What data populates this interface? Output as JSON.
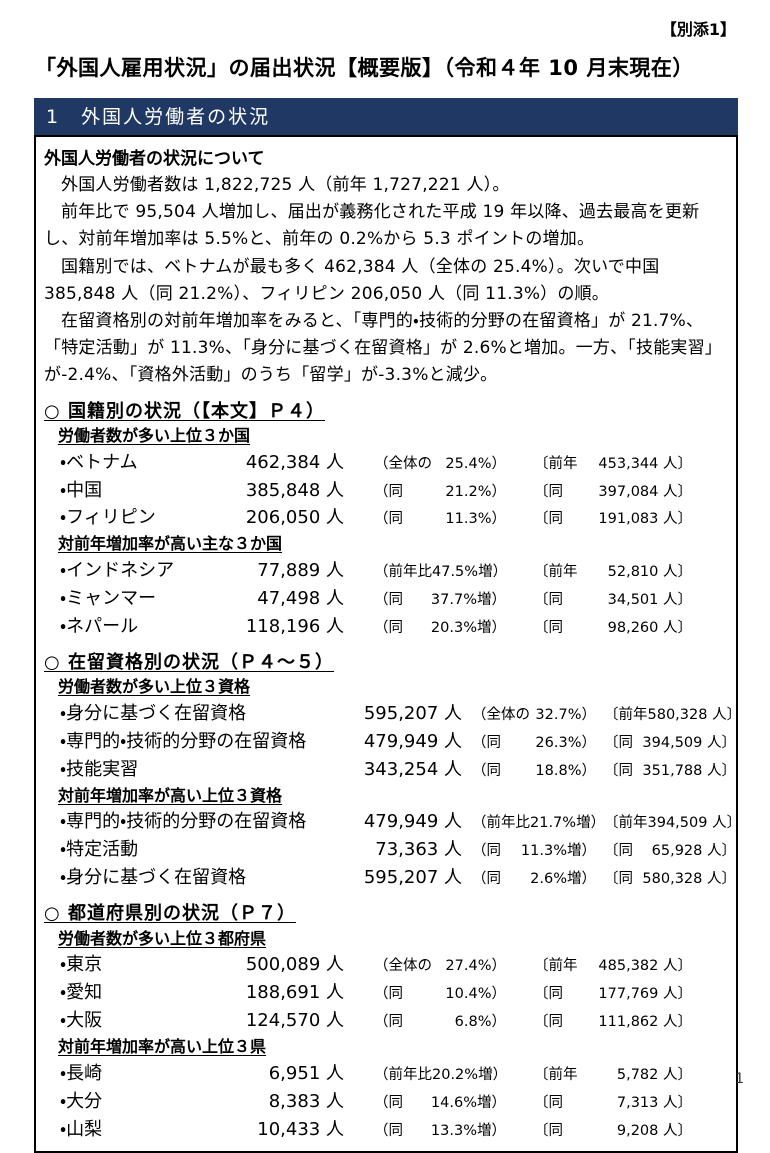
{
  "page": {
    "attachment": "【別添1】",
    "title": "「外国人雇用状況」の届出状況【概要版】（令和４年 10 月末現在）",
    "page_number": "1"
  },
  "bar": {
    "title": "1　外国人労働者の状況"
  },
  "intro": {
    "heading": "外国人労働者の状況について",
    "paragraphs": [
      "外国人労働者数は 1,822,725 人（前年 1,727,221 人）。",
      "前年比で 95,504 人増加し、届出が義務化された平成 19 年以降、過去最高を更新し、対前年増加率は 5.5%と、前年の 0.2%から 5.3 ポイントの増加。",
      "国籍別では、ベトナムが最も多く 462,384 人（全体の 25.4%）。次いで中国 385,848 人（同 21.2%）、フィリピン 206,050 人（同 11.3%）の順。",
      "在留資格別の対前年増加率をみると、「専門的・技術的分野の在留資格」が 21.7%、「特定活動」が 11.3%、「身分に基づく在留資格」が 2.6%と増加。一方、「技能実習」が-2.4%、「資格外活動」のうち「留学」が-3.3%と減少。"
    ]
  },
  "colors": {
    "header_bar": "#1f3864",
    "text": "#000000"
  },
  "sections": [
    {
      "heading": "○ 国籍別の状況（【本文】Ｐ４）",
      "subs": [
        {
          "title": "労働者数が多い上位３か国",
          "rows": [
            {
              "label": "・ベトナム",
              "value": "462,384 人",
              "pct_open": "（全体の",
              "pct_value": "25.4%）",
              "prev_open": "〔前年",
              "prev_value": "453,344 人〕"
            },
            {
              "label": "・中国",
              "value": "385,848 人",
              "pct_open": "（同",
              "pct_value": "21.2%）",
              "prev_open": "〔同",
              "prev_value": "397,084 人〕"
            },
            {
              "label": "・フィリピン",
              "value": "206,050 人",
              "pct_open": "（同",
              "pct_value": "11.3%）",
              "prev_open": "〔同",
              "prev_value": "191,083 人〕"
            }
          ]
        },
        {
          "title": "対前年増加率が高い主な３か国",
          "rows": [
            {
              "label": "・インドネシア",
              "value": "77,889 人",
              "pct_open": "（前年比",
              "pct_value": "47.5%増）",
              "prev_open": "〔前年",
              "prev_value": "52,810 人〕"
            },
            {
              "label": "・ミャンマー",
              "value": "47,498 人",
              "pct_open": "（同",
              "pct_value": "37.7%増）",
              "prev_open": "〔同",
              "prev_value": "34,501 人〕"
            },
            {
              "label": "・ネパール",
              "value": "118,196 人",
              "pct_open": "（同",
              "pct_value": "20.3%増）",
              "prev_open": "〔同",
              "prev_value": "98,260 人〕"
            }
          ]
        }
      ]
    },
    {
      "heading": "○ 在留資格別の状況（Ｐ４～５）",
      "subs": [
        {
          "title": "労働者数が多い上位３資格",
          "rows": [
            {
              "label": "・身分に基づく在留資格",
              "value": "595,207 人",
              "pct_open": "（全体の",
              "pct_value": "32.7%）",
              "prev_open": "〔前年",
              "prev_value": "580,328 人〕"
            },
            {
              "label": "・専門的・技術的分野の在留資格",
              "value": "479,949 人",
              "pct_open": "（同",
              "pct_value": "26.3%）",
              "prev_open": "〔同",
              "prev_value": "394,509 人〕"
            },
            {
              "label": "・技能実習",
              "value": "343,254 人",
              "pct_open": "（同",
              "pct_value": "18.8%）",
              "prev_open": "〔同",
              "prev_value": "351,788 人〕"
            }
          ]
        },
        {
          "title": "対前年増加率が高い上位３資格",
          "rows": [
            {
              "label": "・専門的・技術的分野の在留資格",
              "value": "479,949 人",
              "pct_open": "（前年比",
              "pct_value": "21.7%増）",
              "prev_open": "〔前年",
              "prev_value": "394,509 人〕"
            },
            {
              "label": "・特定活動",
              "value": "73,363 人",
              "pct_open": "（同",
              "pct_value": "11.3%増）",
              "prev_open": "〔同",
              "prev_value": "65,928 人〕"
            },
            {
              "label": "・身分に基づく在留資格",
              "value": "595,207 人",
              "pct_open": "（同",
              "pct_value": "2.6%増）",
              "prev_open": "〔同",
              "prev_value": "580,328 人〕"
            }
          ]
        }
      ]
    },
    {
      "heading": "○ 都道府県別の状況（Ｐ７）",
      "subs": [
        {
          "title": "労働者数が多い上位３都府県",
          "rows": [
            {
              "label": "・東京",
              "value": "500,089 人",
              "pct_open": "（全体の",
              "pct_value": "27.4%）",
              "prev_open": "〔前年",
              "prev_value": "485,382 人〕"
            },
            {
              "label": "・愛知",
              "value": "188,691 人",
              "pct_open": "（同",
              "pct_value": "10.4%）",
              "prev_open": "〔同",
              "prev_value": "177,769 人〕"
            },
            {
              "label": "・大阪",
              "value": "124,570 人",
              "pct_open": "（同",
              "pct_value": "6.8%）",
              "prev_open": "〔同",
              "prev_value": "111,862 人〕"
            }
          ]
        },
        {
          "title": "対前年増加率が高い上位３県",
          "rows": [
            {
              "label": "・長崎",
              "value": "6,951 人",
              "pct_open": "（前年比",
              "pct_value": "20.2%増）",
              "prev_open": "〔前年",
              "prev_value": "5,782 人〕"
            },
            {
              "label": "・大分",
              "value": "8,383 人",
              "pct_open": "（同",
              "pct_value": "14.6%増）",
              "prev_open": "〔同",
              "prev_value": "7,313 人〕"
            },
            {
              "label": "・山梨",
              "value": "10,433 人",
              "pct_open": "（同",
              "pct_value": "13.3%増）",
              "prev_open": "〔同",
              "prev_value": "9,208 人〕"
            }
          ]
        }
      ]
    }
  ]
}
